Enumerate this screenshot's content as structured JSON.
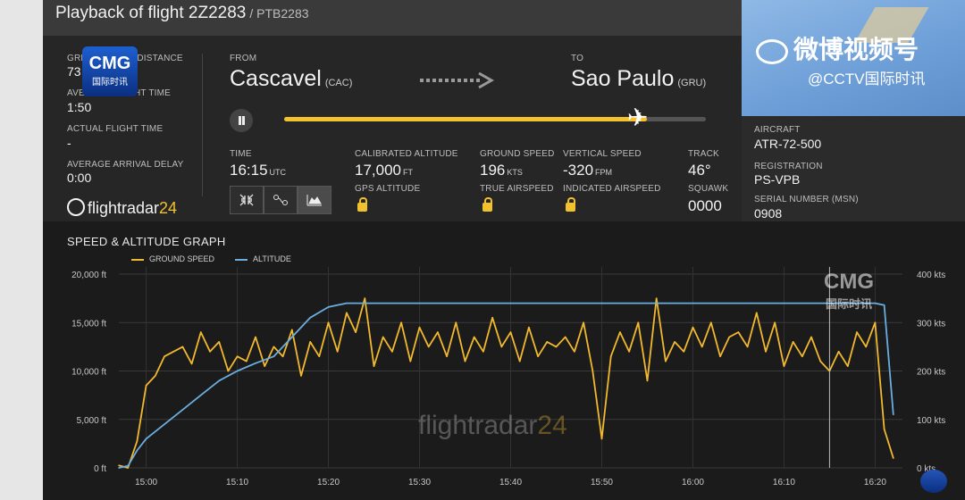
{
  "header": {
    "title": "Playback of flight 2Z2283",
    "callsign": "/ PTB2283"
  },
  "watermarks": {
    "cmg": "CMG",
    "cmg_sub": "国际时讯",
    "weibo": "微博视频号",
    "cctv": "@CCTV国际时讯",
    "fr_name": "flightradar",
    "fr_num": "24"
  },
  "stats": {
    "great_circle_label": "GREAT CIRCLE DISTANCE",
    "great_circle_value": "73",
    "avg_time_label": "AVERAGE FLIGHT TIME",
    "avg_time_value": "1:50",
    "actual_time_label": "ACTUAL FLIGHT TIME",
    "actual_time_value": "-",
    "avg_delay_label": "AVERAGE ARRIVAL DELAY",
    "avg_delay_value": "0:00"
  },
  "route": {
    "from_label": "FROM",
    "from_city": "Cascavel",
    "from_code": "(CAC)",
    "to_label": "TO",
    "to_city": "Sao Paulo",
    "to_code": "(GRU)",
    "progress": 0.86
  },
  "live": {
    "time_label": "TIME",
    "time_value": "16:15",
    "time_unit": "UTC",
    "cal_alt_label": "CALIBRATED ALTITUDE",
    "cal_alt_value": "17,000",
    "cal_alt_unit": "FT",
    "gps_alt_label": "GPS ALTITUDE",
    "ground_speed_label": "GROUND SPEED",
    "ground_speed_value": "196",
    "ground_speed_unit": "KTS",
    "true_airspeed_label": "TRUE AIRSPEED",
    "vs_label": "VERTICAL SPEED",
    "vs_value": "-320",
    "vs_unit": "FPM",
    "ias_label": "INDICATED AIRSPEED",
    "track_label": "TRACK",
    "track_value": "46°",
    "squawk_label": "SQUAWK",
    "squawk_value": "0000"
  },
  "aircraft": {
    "aircraft_label": "AIRCRAFT",
    "aircraft_value": "ATR-72-500",
    "registration_label": "REGISTRATION",
    "registration_value": "PS-VPB",
    "msn_label": "SERIAL NUMBER (MSN)",
    "msn_value": "0908"
  },
  "icons": [
    "pause-icon",
    "airplane-icon",
    "arrow-right-icon",
    "collapse-icon",
    "route-icon",
    "chart-icon",
    "lock-icon",
    "flightradar-logo-icon"
  ],
  "colors": {
    "ground_speed": "#f2b82e",
    "altitude": "#6aaee0",
    "accent": "#f2c12e"
  },
  "chart_data": {
    "type": "line",
    "title": "SPEED & ALTITUDE GRAPH",
    "x_ticks": [
      "15:00",
      "15:10",
      "15:20",
      "15:30",
      "15:40",
      "15:50",
      "16:00",
      "16:10",
      "16:20"
    ],
    "xlim": [
      "14:57",
      "16:23"
    ],
    "y_left": {
      "ticks": [
        "20,000 ft",
        "15,000 ft",
        "10,000 ft",
        "5,000 ft",
        "0 ft"
      ],
      "ylim": [
        0,
        20000
      ]
    },
    "y_right": {
      "ticks": [
        "400 kts",
        "300 kts",
        "200 kts",
        "100 kts",
        "0 kts"
      ],
      "ylim": [
        0,
        400
      ]
    },
    "grid": true,
    "legend_position": "top-left",
    "cursor_time": "16:15",
    "series": [
      {
        "name": "GROUND SPEED",
        "axis": "right",
        "unit": "kts",
        "x": [
          "14:57",
          "14:58",
          "14:59",
          "15:00",
          "15:01",
          "15:02",
          "15:03",
          "15:04",
          "15:05",
          "15:06",
          "15:07",
          "15:08",
          "15:09",
          "15:10",
          "15:11",
          "15:12",
          "15:13",
          "15:14",
          "15:15",
          "15:16",
          "15:17",
          "15:18",
          "15:19",
          "15:20",
          "15:21",
          "15:22",
          "15:23",
          "15:24",
          "15:25",
          "15:26",
          "15:27",
          "15:28",
          "15:29",
          "15:30",
          "15:31",
          "15:32",
          "15:33",
          "15:34",
          "15:35",
          "15:36",
          "15:37",
          "15:38",
          "15:39",
          "15:40",
          "15:41",
          "15:42",
          "15:43",
          "15:44",
          "15:45",
          "15:46",
          "15:47",
          "15:48",
          "15:49",
          "15:50",
          "15:51",
          "15:52",
          "15:53",
          "15:54",
          "15:55",
          "15:56",
          "15:57",
          "15:58",
          "15:59",
          "16:00",
          "16:01",
          "16:02",
          "16:03",
          "16:04",
          "16:05",
          "16:06",
          "16:07",
          "16:08",
          "16:09",
          "16:10",
          "16:11",
          "16:12",
          "16:13",
          "16:14",
          "16:15",
          "16:16",
          "16:17",
          "16:18",
          "16:19",
          "16:20",
          "16:21",
          "16:22"
        ],
        "values": [
          5,
          0,
          55,
          170,
          190,
          230,
          240,
          250,
          215,
          280,
          240,
          260,
          200,
          230,
          220,
          270,
          210,
          250,
          230,
          285,
          190,
          260,
          230,
          300,
          240,
          320,
          280,
          350,
          210,
          270,
          240,
          300,
          220,
          290,
          250,
          280,
          230,
          300,
          220,
          270,
          240,
          310,
          250,
          280,
          220,
          290,
          230,
          260,
          250,
          270,
          240,
          300,
          200,
          60,
          230,
          280,
          240,
          300,
          180,
          350,
          220,
          260,
          240,
          290,
          250,
          300,
          230,
          270,
          280,
          250,
          320,
          240,
          300,
          210,
          260,
          230,
          270,
          220,
          200,
          240,
          210,
          280,
          250,
          300,
          80,
          20
        ]
      },
      {
        "name": "ALTITUDE",
        "axis": "left",
        "unit": "ft",
        "x": [
          "14:57",
          "14:58",
          "14:59",
          "15:00",
          "15:02",
          "15:04",
          "15:06",
          "15:08",
          "15:10",
          "15:12",
          "15:14",
          "15:16",
          "15:18",
          "15:20",
          "15:22",
          "15:23",
          "15:30",
          "15:40",
          "15:50",
          "16:00",
          "16:10",
          "16:15",
          "16:20",
          "16:21",
          "16:22"
        ],
        "values": [
          0,
          200,
          1800,
          3000,
          4500,
          6000,
          7500,
          9000,
          10000,
          10800,
          11500,
          13500,
          15500,
          16600,
          17000,
          17000,
          17000,
          17000,
          17000,
          17000,
          17000,
          17000,
          17000,
          16800,
          5500
        ]
      }
    ]
  }
}
